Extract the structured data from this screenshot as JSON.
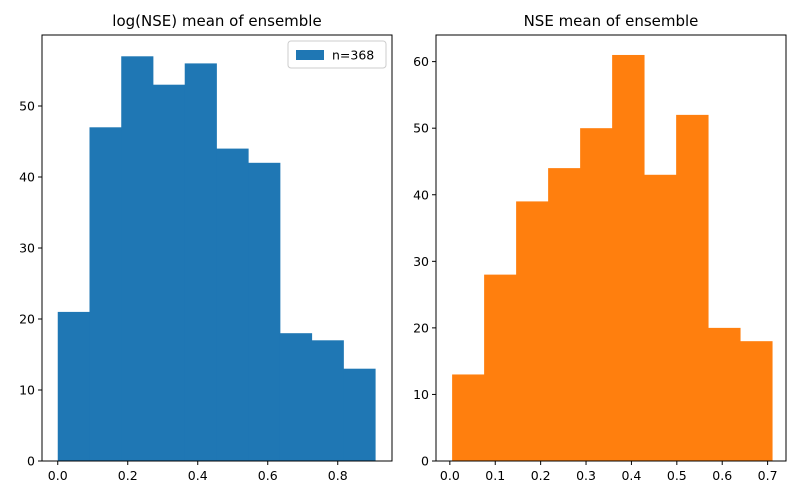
{
  "chart_data": [
    {
      "type": "bar",
      "title": "log(NSE) mean of ensemble",
      "color": "#1f77b4",
      "xlim": [
        -0.045,
        0.955
      ],
      "ylim": [
        0,
        60
      ],
      "bin_edges": [
        0.0,
        0.0907,
        0.1814,
        0.2721,
        0.3628,
        0.4535,
        0.5442,
        0.6349,
        0.7256,
        0.8163,
        0.907
      ],
      "values": [
        21,
        47,
        57,
        53,
        56,
        44,
        42,
        18,
        17,
        13
      ],
      "xticks": [
        0.0,
        0.2,
        0.4,
        0.6,
        0.8
      ],
      "xtick_labels": [
        "0.0",
        "0.2",
        "0.4",
        "0.6",
        "0.8"
      ],
      "yticks": [
        0,
        10,
        20,
        30,
        40,
        50
      ],
      "ytick_labels": [
        "0",
        "10",
        "20",
        "30",
        "40",
        "50"
      ],
      "legend": {
        "label": "n=368",
        "position": "top-right"
      }
    },
    {
      "type": "bar",
      "title": "NSE mean of ensemble",
      "color": "#ff7f0e",
      "xlim": [
        -0.0305,
        0.7405
      ],
      "ylim": [
        0,
        64
      ],
      "bin_edges": [
        0.005,
        0.0755,
        0.146,
        0.2165,
        0.287,
        0.3575,
        0.428,
        0.4985,
        0.569,
        0.6395,
        0.71
      ],
      "values": [
        13,
        28,
        39,
        44,
        50,
        61,
        43,
        52,
        20,
        18
      ],
      "xticks": [
        0.0,
        0.1,
        0.2,
        0.3,
        0.4,
        0.5,
        0.6,
        0.7
      ],
      "xtick_labels": [
        "0.0",
        "0.1",
        "0.2",
        "0.3",
        "0.4",
        "0.5",
        "0.6",
        "0.7"
      ],
      "yticks": [
        0,
        10,
        20,
        30,
        40,
        50,
        60
      ],
      "ytick_labels": [
        "0",
        "10",
        "20",
        "30",
        "40",
        "50",
        "60"
      ]
    }
  ]
}
